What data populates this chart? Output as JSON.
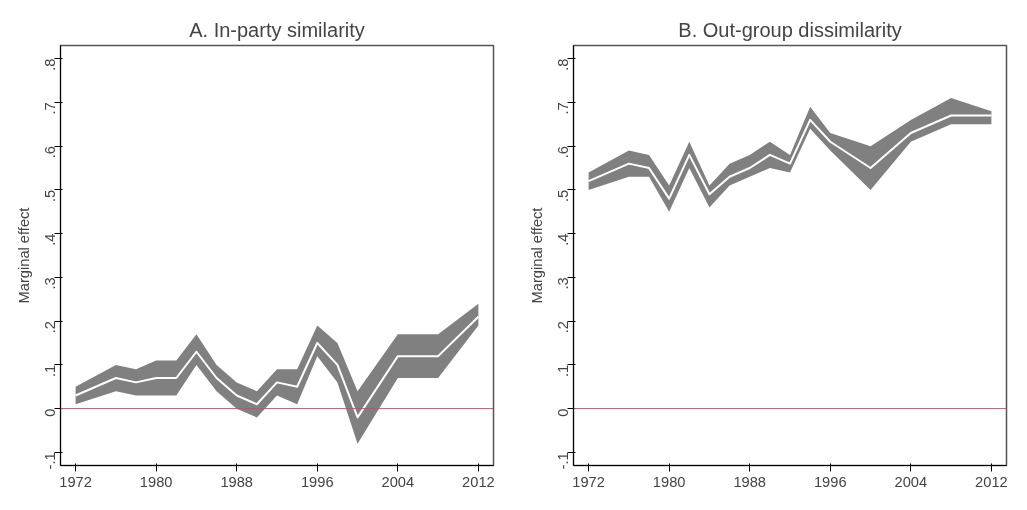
{
  "chart_data": [
    {
      "type": "line",
      "title": "A. In-party similarity",
      "ylabel": "Marginal effect",
      "x": [
        1972,
        1976,
        1978,
        1980,
        1982,
        1984,
        1986,
        1988,
        1990,
        1992,
        1994,
        1996,
        1998,
        2000,
        2004,
        2008,
        2012
      ],
      "series": [
        {
          "color": "#ffffff",
          "values": [
            0.03,
            0.07,
            0.06,
            0.07,
            0.07,
            0.13,
            0.07,
            0.03,
            0.01,
            0.06,
            0.05,
            0.15,
            0.1,
            -0.02,
            0.12,
            0.12,
            0.21
          ],
          "lower": [
            0.01,
            0.04,
            0.03,
            0.03,
            0.03,
            0.1,
            0.04,
            0.0,
            -0.02,
            0.03,
            0.01,
            0.12,
            0.06,
            -0.08,
            0.07,
            0.07,
            0.19
          ],
          "upper": [
            0.05,
            0.1,
            0.09,
            0.11,
            0.11,
            0.17,
            0.1,
            0.06,
            0.04,
            0.09,
            0.09,
            0.19,
            0.15,
            0.04,
            0.17,
            0.17,
            0.24
          ]
        }
      ],
      "xlim": [
        1970.5,
        2013.5
      ],
      "ylim": [
        -0.13,
        0.83
      ],
      "xticks": [
        1972,
        1980,
        1988,
        1996,
        2004,
        2012
      ],
      "yticks": [
        {
          "value": -0.1,
          "label": "-.1"
        },
        0,
        {
          "value": 0.1,
          "label": ".1"
        },
        {
          "value": 0.2,
          "label": ".2"
        },
        {
          "value": 0.3,
          "label": ".3"
        },
        {
          "value": 0.4,
          "label": ".4"
        },
        {
          "value": 0.5,
          "label": ".5"
        },
        {
          "value": 0.6,
          "label": ".6"
        },
        {
          "value": 0.7,
          "label": ".7"
        },
        {
          "value": 0.8,
          "label": ".8"
        }
      ],
      "ref_lines": [
        {
          "axis": "y",
          "value": 0,
          "color": "#c0506e"
        }
      ],
      "grid": false,
      "marker": "none",
      "line_style": "solid"
    },
    {
      "type": "line",
      "title": "B. Out-group dissimilarity",
      "ylabel": "Marginal effect",
      "x": [
        1972,
        1976,
        1978,
        1980,
        1982,
        1984,
        1986,
        1988,
        1990,
        1992,
        1994,
        1996,
        2000,
        2004,
        2008,
        2012
      ],
      "series": [
        {
          "color": "#ffffff",
          "values": [
            0.52,
            0.56,
            0.55,
            0.48,
            0.58,
            0.49,
            0.53,
            0.55,
            0.58,
            0.56,
            0.66,
            0.61,
            0.55,
            0.63,
            0.67,
            0.67
          ],
          "lower": [
            0.5,
            0.53,
            0.53,
            0.45,
            0.55,
            0.46,
            0.51,
            0.53,
            0.55,
            0.54,
            0.64,
            0.59,
            0.5,
            0.61,
            0.65,
            0.65
          ],
          "upper": [
            0.54,
            0.59,
            0.58,
            0.51,
            0.61,
            0.51,
            0.56,
            0.58,
            0.61,
            0.58,
            0.69,
            0.63,
            0.6,
            0.66,
            0.71,
            0.68
          ]
        }
      ],
      "xlim": [
        1970.5,
        2013.5
      ],
      "ylim": [
        -0.13,
        0.83
      ],
      "xticks": [
        1972,
        1980,
        1988,
        1996,
        2004,
        2012
      ],
      "yticks": [
        {
          "value": -0.1,
          "label": "-.1"
        },
        0,
        {
          "value": 0.1,
          "label": ".1"
        },
        {
          "value": 0.2,
          "label": ".2"
        },
        {
          "value": 0.3,
          "label": ".3"
        },
        {
          "value": 0.4,
          "label": ".4"
        },
        {
          "value": 0.5,
          "label": ".5"
        },
        {
          "value": 0.6,
          "label": ".6"
        },
        {
          "value": 0.7,
          "label": ".7"
        },
        {
          "value": 0.8,
          "label": ".8"
        }
      ],
      "ref_lines": [
        {
          "axis": "y",
          "value": 0,
          "color": "#c0506e"
        }
      ],
      "grid": false,
      "marker": "none",
      "line_style": "solid"
    }
  ]
}
